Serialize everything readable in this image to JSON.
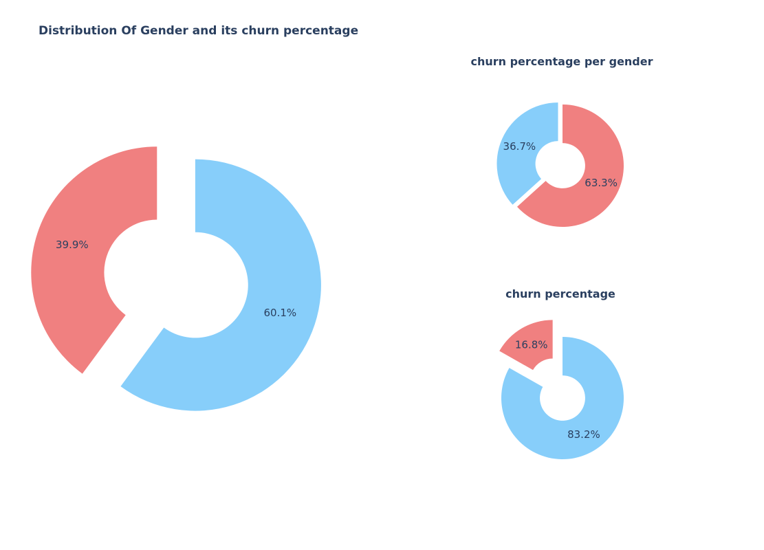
{
  "title": "Distribution Of Gender  and its churn percentage",
  "colors": {
    "red": "#f08080",
    "blue": "#87cefa",
    "title_text": "#2a3f5f",
    "label_text": "#2a3f5f"
  },
  "chart_data": [
    {
      "type": "pie",
      "title": "",
      "hole": true,
      "slices": [
        {
          "value": 39.9,
          "label": "39.9%",
          "color": "#f08080"
        },
        {
          "value": 60.1,
          "label": "60.1%",
          "color": "#87cefa"
        }
      ]
    },
    {
      "type": "pie",
      "title": "churn percentage per gender",
      "hole": true,
      "slices": [
        {
          "value": 36.7,
          "label": "36.7%",
          "color": "#87cefa"
        },
        {
          "value": 63.3,
          "label": "63.3%",
          "color": "#f08080"
        }
      ]
    },
    {
      "type": "pie",
      "title": "churn percentage",
      "hole": true,
      "slices": [
        {
          "value": 16.8,
          "label": "16.8%",
          "color": "#f08080"
        },
        {
          "value": 83.2,
          "label": "83.2%",
          "color": "#87cefa"
        }
      ]
    }
  ]
}
